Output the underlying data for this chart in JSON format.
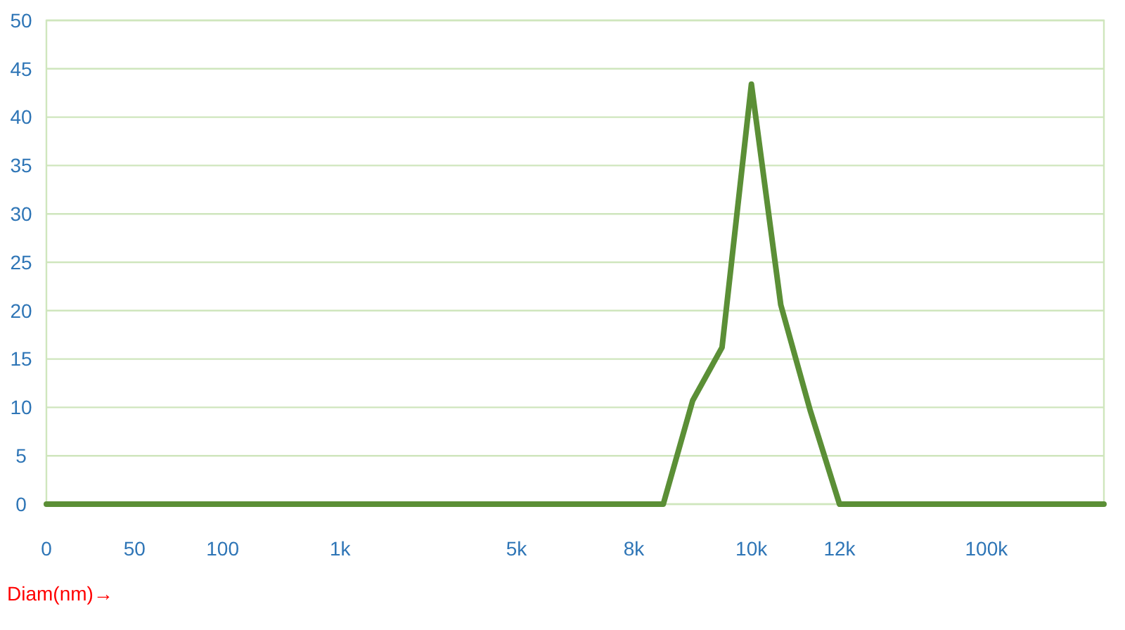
{
  "chart_data": {
    "type": "line",
    "xlabel": "Diam(nm)→",
    "categories": [
      "0",
      null,
      null,
      "50",
      null,
      null,
      "100",
      null,
      null,
      null,
      "1k",
      null,
      null,
      null,
      null,
      null,
      "5k",
      null,
      null,
      null,
      "8k",
      null,
      null,
      null,
      "10k",
      null,
      null,
      "12k",
      null,
      null,
      null,
      null,
      "100k",
      null,
      null,
      null,
      null
    ],
    "series": [
      {
        "color": "#5b8f36",
        "values": [
          0,
          0,
          0,
          0,
          0,
          0,
          0,
          0,
          0,
          0,
          0,
          0,
          0,
          0,
          0,
          0,
          0,
          0,
          0,
          0,
          0,
          0,
          10.7,
          16.2,
          43.4,
          20.6,
          9.7,
          0,
          0,
          0,
          0,
          0,
          0,
          0,
          0,
          0,
          0
        ]
      }
    ],
    "ylim": [
      0,
      50
    ],
    "yticks": [
      0,
      5,
      10,
      15,
      20,
      25,
      30,
      35,
      40,
      45,
      50
    ],
    "grid": "y",
    "marker": "none",
    "line_style": "solid"
  }
}
